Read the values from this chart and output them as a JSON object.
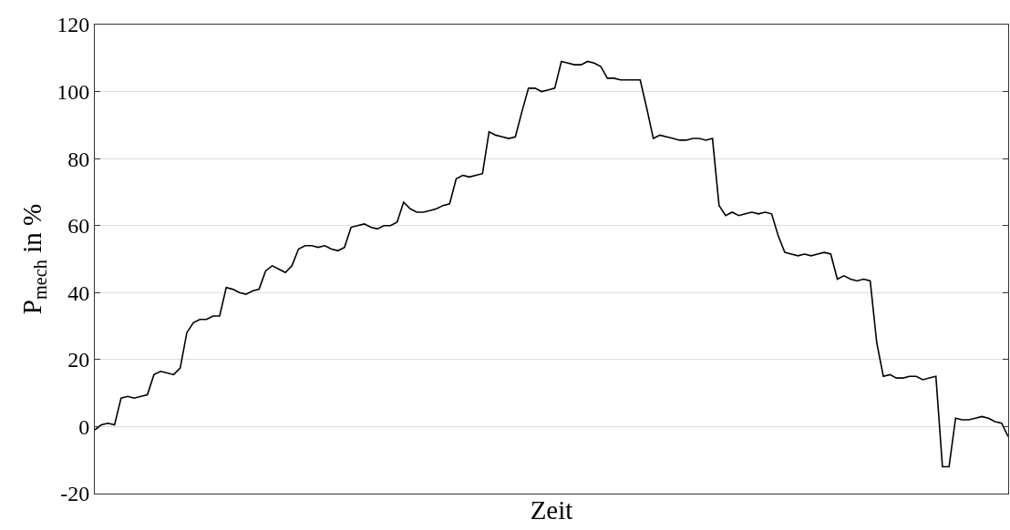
{
  "chart_data": {
    "type": "line",
    "xlabel": "Zeit",
    "ylabel": "P$_{mech}$ in %",
    "categories": [
      null,
      null,
      null,
      null,
      null,
      null,
      null,
      null,
      null,
      null,
      null,
      null,
      null,
      null,
      null,
      null,
      null,
      null,
      null,
      null,
      null,
      null,
      null,
      null,
      null,
      null,
      null,
      null,
      null,
      null,
      null,
      null,
      null,
      null,
      null,
      null,
      null,
      null,
      null,
      null,
      null,
      null,
      null,
      null,
      null,
      null,
      null,
      null,
      null,
      null,
      null,
      null,
      null,
      null,
      null,
      null,
      null,
      null,
      null,
      null,
      null,
      null,
      null,
      null,
      null,
      null,
      null,
      null,
      null,
      null,
      null,
      null,
      null,
      null,
      null,
      null,
      null,
      null,
      null,
      null,
      null,
      null,
      null,
      null,
      null,
      null,
      null,
      null,
      null,
      null,
      null,
      null,
      null,
      null,
      null,
      null,
      null,
      null,
      null,
      null,
      null,
      null,
      null,
      null,
      null,
      null,
      null,
      null,
      null,
      null,
      null,
      null,
      null,
      null,
      null,
      null,
      null,
      null,
      null,
      null,
      null,
      null,
      null,
      null,
      null,
      null,
      null,
      null,
      null,
      null,
      null,
      null,
      null,
      null,
      null,
      null,
      null,
      null,
      null,
      null
    ],
    "series": [
      {
        "color": "#000000",
        "values": [
          -1,
          0.5,
          1,
          0.5,
          8.5,
          9,
          8.5,
          9,
          9.5,
          15.5,
          16.5,
          16,
          15.5,
          17.5,
          28,
          31,
          32,
          32,
          33,
          33,
          41.5,
          41,
          40,
          39.5,
          40.5,
          41,
          46.5,
          48,
          47,
          46,
          48,
          53,
          54,
          54,
          53.5,
          54,
          53,
          52.5,
          53.5,
          59.5,
          60,
          60.5,
          59.5,
          59,
          60,
          60,
          61,
          67,
          65,
          64,
          64,
          64.5,
          65,
          66,
          66.5,
          74,
          75,
          74.5,
          75,
          75.5,
          88,
          87,
          86.5,
          86,
          86.5,
          94,
          101,
          101,
          100,
          100.5,
          101,
          109,
          108.5,
          108,
          108,
          109,
          108.5,
          107.5,
          104,
          104,
          103.5,
          103.5,
          103.5,
          103.5,
          95,
          86,
          87,
          86.5,
          86,
          85.5,
          85.5,
          86,
          86,
          85.5,
          86,
          66,
          63,
          64,
          63,
          63.5,
          64,
          63.5,
          64,
          63.5,
          57,
          52,
          51.5,
          51,
          51.5,
          51,
          51.5,
          52,
          51.5,
          44,
          45,
          44,
          43.5,
          44,
          43.5,
          25,
          15,
          15.5,
          14.5,
          14.5,
          15,
          15,
          14,
          14.5,
          15,
          -12,
          -12,
          2.5,
          2,
          2,
          2.5,
          3,
          2.5,
          1.5,
          1,
          -3
        ]
      }
    ],
    "ylim": [
      -20,
      120
    ],
    "yticks": [
      -20,
      0,
      20,
      40,
      60,
      80,
      100,
      120
    ],
    "grid": "y",
    "marker": "none",
    "line_style": "solid"
  }
}
